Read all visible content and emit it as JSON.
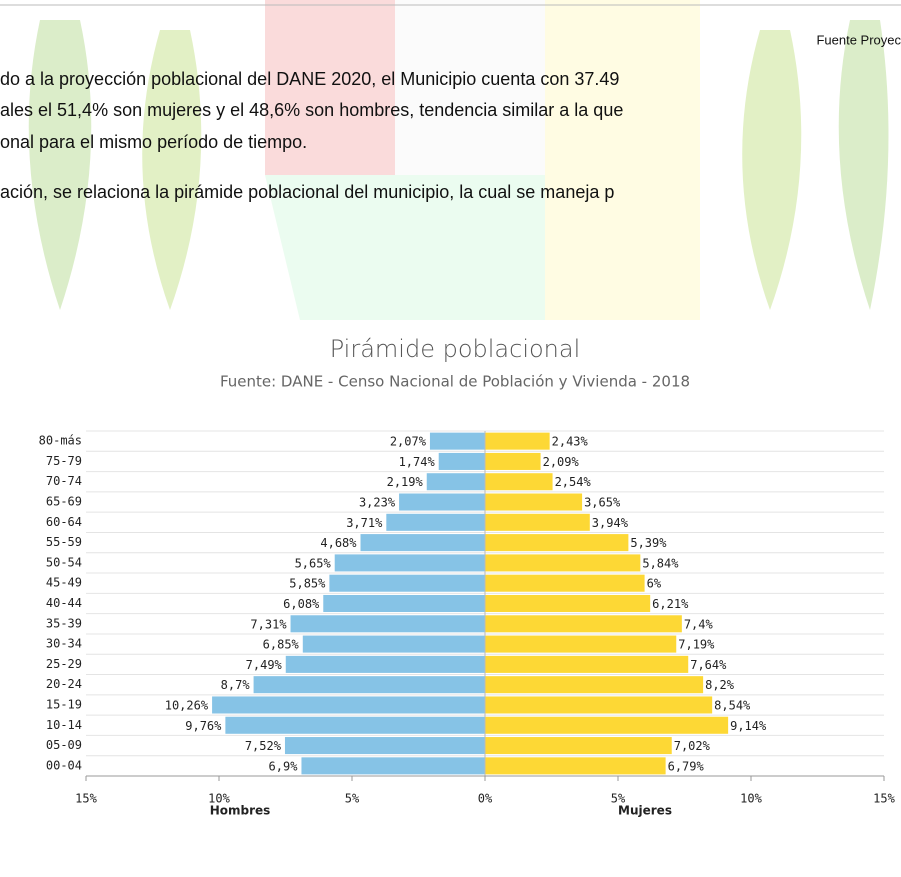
{
  "document": {
    "source_note": "Fuente Proyec",
    "paragraphs": [
      [
        "do a la proyección poblacional del DANE 2020, el Municipio cuenta con 37.49",
        "ales el 51,4% son mujeres y el 48,6% son hombres, tendencia similar a la que",
        "onal para el mismo período de tiempo."
      ],
      [
        "ación, se relaciona la pirámide poblacional del municipio, la cual se maneja p"
      ]
    ]
  },
  "chart_data": {
    "type": "pyramid",
    "title": "Pirámide poblacional",
    "subtitle": "Fuente: DANE - Censo Nacional de Población y Vivienda - 2018",
    "categories": [
      "80-más",
      "75-79",
      "70-74",
      "65-69",
      "60-64",
      "55-59",
      "50-54",
      "45-49",
      "40-44",
      "35-39",
      "30-34",
      "25-29",
      "20-24",
      "15-19",
      "10-14",
      "05-09",
      "00-04"
    ],
    "series": [
      {
        "name": "Hombres",
        "color": "#86c3e6",
        "values": [
          -2.07,
          -1.74,
          -2.19,
          -3.23,
          -3.71,
          -4.68,
          -5.65,
          -5.85,
          -6.08,
          -7.31,
          -6.85,
          -7.49,
          -8.7,
          -10.26,
          -9.76,
          -7.52,
          -6.9
        ],
        "value_labels": [
          "2,07%",
          "1,74%",
          "2,19%",
          "3,23%",
          "3,71%",
          "4,68%",
          "5,65%",
          "5,85%",
          "6,08%",
          "7,31%",
          "6,85%",
          "7,49%",
          "8,7%",
          "10,26%",
          "9,76%",
          "7,52%",
          "6,9%"
        ]
      },
      {
        "name": "Mujeres",
        "color": "#fdd835",
        "values": [
          2.43,
          2.09,
          2.54,
          3.65,
          3.94,
          5.39,
          5.84,
          6,
          6.21,
          7.4,
          7.19,
          7.64,
          8.2,
          8.54,
          9.14,
          7.02,
          6.79
        ],
        "value_labels": [
          "2,43%",
          "2,09%",
          "2,54%",
          "3,65%",
          "3,94%",
          "5,39%",
          "5,84%",
          "6%",
          "6,21%",
          "7,4%",
          "7,19%",
          "7,64%",
          "8,2%",
          "8,54%",
          "9,14%",
          "7,02%",
          "6,79%"
        ]
      }
    ],
    "xlim": [
      -15,
      15
    ],
    "xticks": [
      {
        "value": -15,
        "label": "15%"
      },
      {
        "value": -10,
        "label": "10%"
      },
      {
        "value": -5,
        "label": "5%"
      },
      {
        "value": 0,
        "label": "0%"
      },
      {
        "value": 5,
        "label": "5%"
      },
      {
        "value": 10,
        "label": "10%"
      },
      {
        "value": 15,
        "label": "15%"
      }
    ],
    "grid": true
  }
}
